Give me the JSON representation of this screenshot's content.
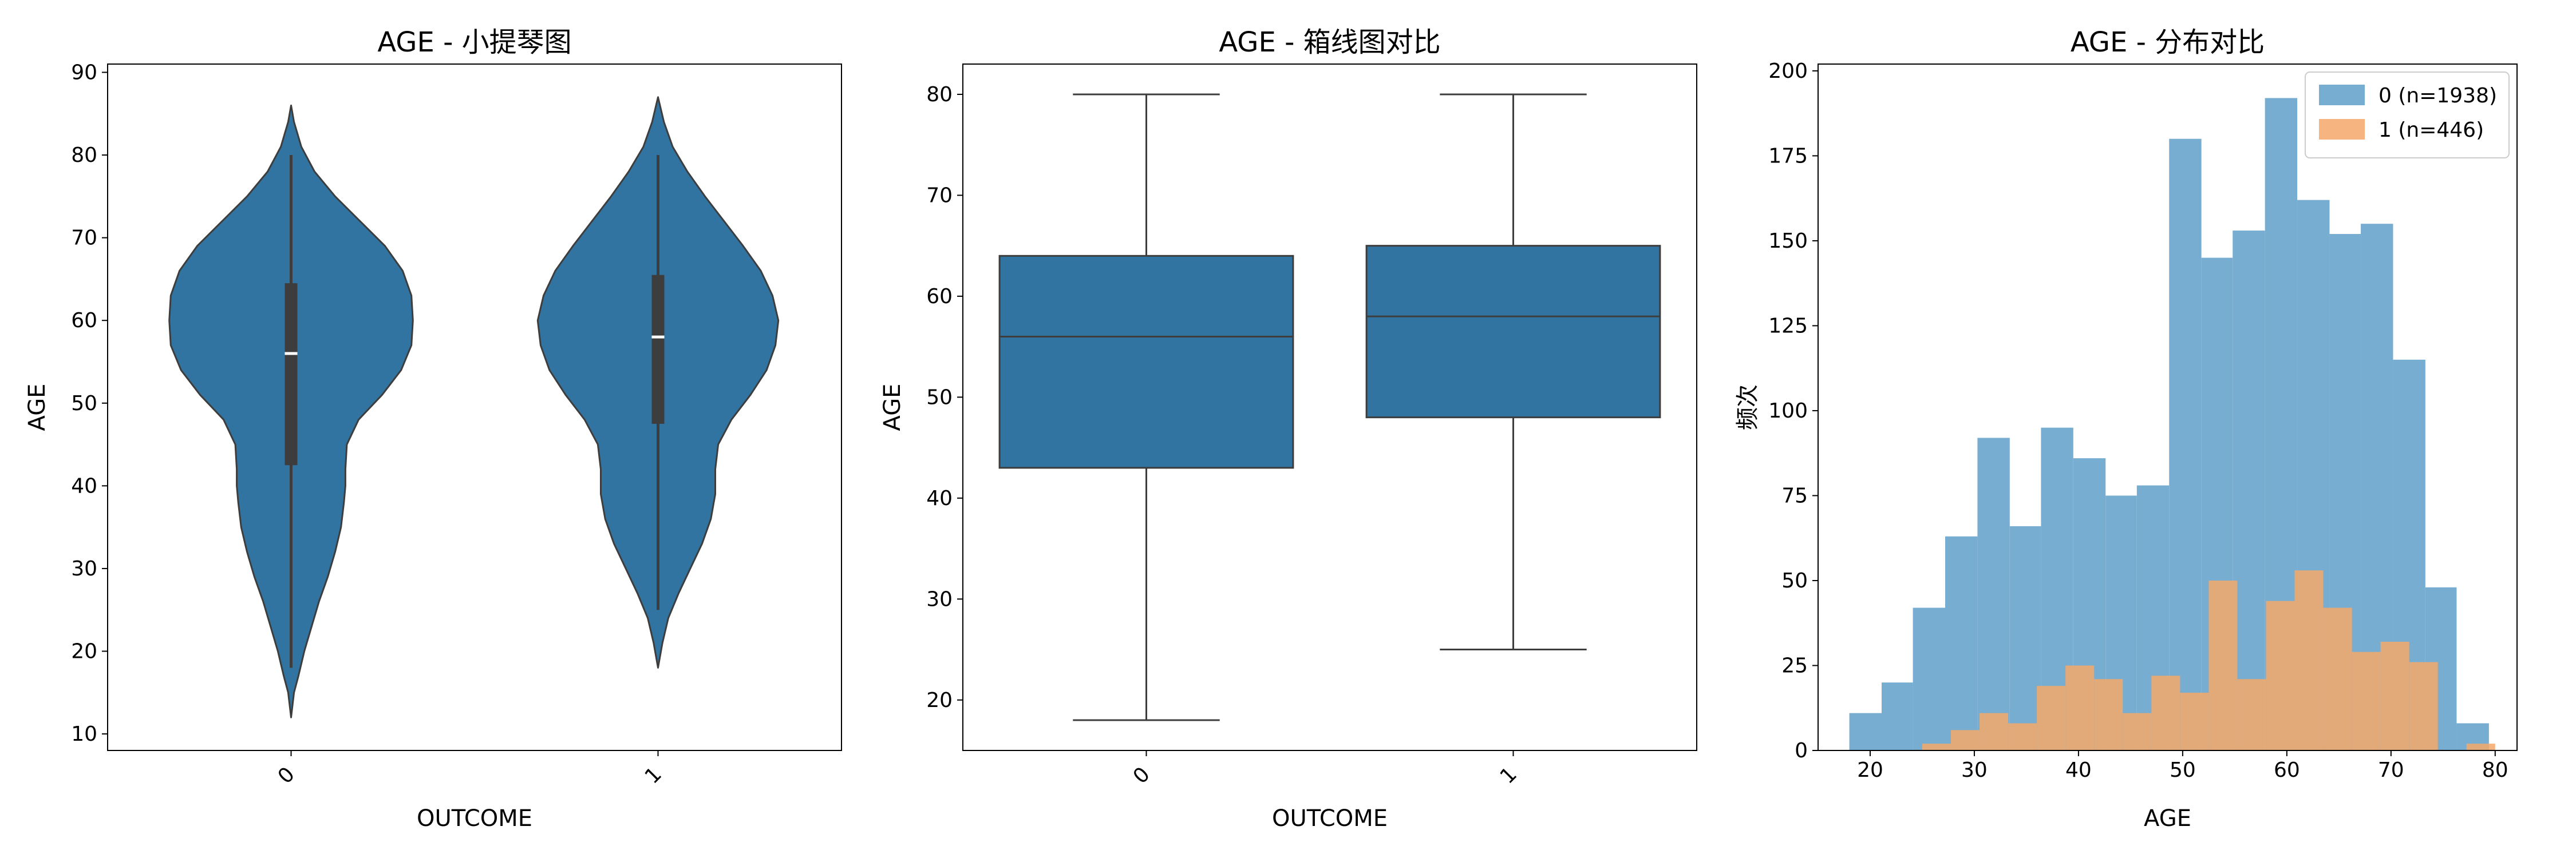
{
  "colors": {
    "violin": "#3274a1",
    "box": "#3274a1",
    "edge": "#3d3d3d",
    "hist0": "#78add2",
    "hist1": "#f5a86a",
    "overlap": "#c8925c"
  },
  "chart_data": [
    {
      "type": "violin",
      "title": "AGE - 小提琴图",
      "xlabel": "OUTCOME",
      "ylabel": "AGE",
      "categories": [
        "0",
        "1"
      ],
      "ylim": [
        8,
        91
      ],
      "yticks": [
        10,
        20,
        30,
        40,
        50,
        60,
        70,
        80,
        90
      ],
      "violins": [
        {
          "category": "0",
          "range": [
            12,
            86
          ],
          "whisker": [
            18,
            80
          ],
          "q1": 42.5,
          "median": 56,
          "q3": 64.5,
          "profile": [
            [
              12,
              0.0
            ],
            [
              15,
              0.02
            ],
            [
              17,
              0.05
            ],
            [
              20,
              0.09
            ],
            [
              23,
              0.14
            ],
            [
              26,
              0.19
            ],
            [
              29,
              0.25
            ],
            [
              32,
              0.3
            ],
            [
              35,
              0.34
            ],
            [
              38,
              0.36
            ],
            [
              40,
              0.37
            ],
            [
              42,
              0.37
            ],
            [
              45,
              0.38
            ],
            [
              48,
              0.46
            ],
            [
              51,
              0.62
            ],
            [
              54,
              0.75
            ],
            [
              57,
              0.82
            ],
            [
              60,
              0.83
            ],
            [
              63,
              0.82
            ],
            [
              66,
              0.76
            ],
            [
              69,
              0.64
            ],
            [
              72,
              0.47
            ],
            [
              75,
              0.3
            ],
            [
              78,
              0.16
            ],
            [
              81,
              0.07
            ],
            [
              84,
              0.02
            ],
            [
              86,
              0.0
            ]
          ]
        },
        {
          "category": "1",
          "range": [
            18,
            87
          ],
          "whisker": [
            25,
            80
          ],
          "q1": 47.5,
          "median": 58,
          "q3": 65.5,
          "profile": [
            [
              18,
              0.0
            ],
            [
              21,
              0.03
            ],
            [
              24,
              0.07
            ],
            [
              27,
              0.14
            ],
            [
              30,
              0.22
            ],
            [
              33,
              0.3
            ],
            [
              36,
              0.36
            ],
            [
              39,
              0.39
            ],
            [
              42,
              0.39
            ],
            [
              45,
              0.41
            ],
            [
              48,
              0.5
            ],
            [
              51,
              0.63
            ],
            [
              54,
              0.74
            ],
            [
              57,
              0.8
            ],
            [
              60,
              0.82
            ],
            [
              63,
              0.78
            ],
            [
              66,
              0.7
            ],
            [
              69,
              0.58
            ],
            [
              72,
              0.45
            ],
            [
              75,
              0.32
            ],
            [
              78,
              0.2
            ],
            [
              81,
              0.1
            ],
            [
              84,
              0.04
            ],
            [
              87,
              0.0
            ]
          ]
        }
      ]
    },
    {
      "type": "box",
      "title": "AGE - 箱线图对比",
      "xlabel": "OUTCOME",
      "ylabel": "AGE",
      "categories": [
        "0",
        "1"
      ],
      "ylim": [
        15,
        83
      ],
      "yticks": [
        20,
        30,
        40,
        50,
        60,
        70,
        80
      ],
      "boxes": [
        {
          "category": "0",
          "whislo": 18,
          "q1": 43,
          "median": 56,
          "q3": 64,
          "whishi": 80
        },
        {
          "category": "1",
          "whislo": 25,
          "q1": 48,
          "median": 58,
          "q3": 65,
          "whishi": 80
        }
      ]
    },
    {
      "type": "histogram",
      "title": "AGE - 分布对比",
      "xlabel": "AGE",
      "ylabel": "频次",
      "xlim": [
        15,
        82.1
      ],
      "ylim": [
        0,
        202
      ],
      "xticks": [
        20,
        30,
        40,
        50,
        60,
        70,
        80
      ],
      "yticks": [
        0,
        25,
        50,
        75,
        100,
        125,
        150,
        175,
        200
      ],
      "legend_position": "top-right",
      "series": [
        {
          "name": "0 (n=1938)",
          "bin_edges": [
            18,
            21.1,
            24.1,
            27.2,
            30.3,
            33.4,
            36.4,
            39.5,
            42.6,
            45.6,
            48.7,
            51.8,
            54.8,
            57.9,
            61.0,
            64.1,
            67.1,
            70.2,
            73.3,
            76.3,
            79.4
          ],
          "counts": [
            11,
            20,
            42,
            63,
            92,
            66,
            95,
            86,
            75,
            78,
            180,
            145,
            153,
            192,
            162,
            152,
            155,
            115,
            48,
            8
          ]
        },
        {
          "name": "1 (n=446)",
          "bin_edges": [
            25,
            27.75,
            30.5,
            33.25,
            36.0,
            38.75,
            41.5,
            44.25,
            47.0,
            49.75,
            52.5,
            55.25,
            58.0,
            60.75,
            63.5,
            66.25,
            69.0,
            71.75,
            74.5,
            77.25,
            80.0
          ],
          "counts": [
            2,
            6,
            11,
            8,
            19,
            25,
            21,
            11,
            22,
            17,
            50,
            21,
            44,
            53,
            42,
            29,
            32,
            26,
            0,
            2
          ]
        }
      ]
    }
  ]
}
